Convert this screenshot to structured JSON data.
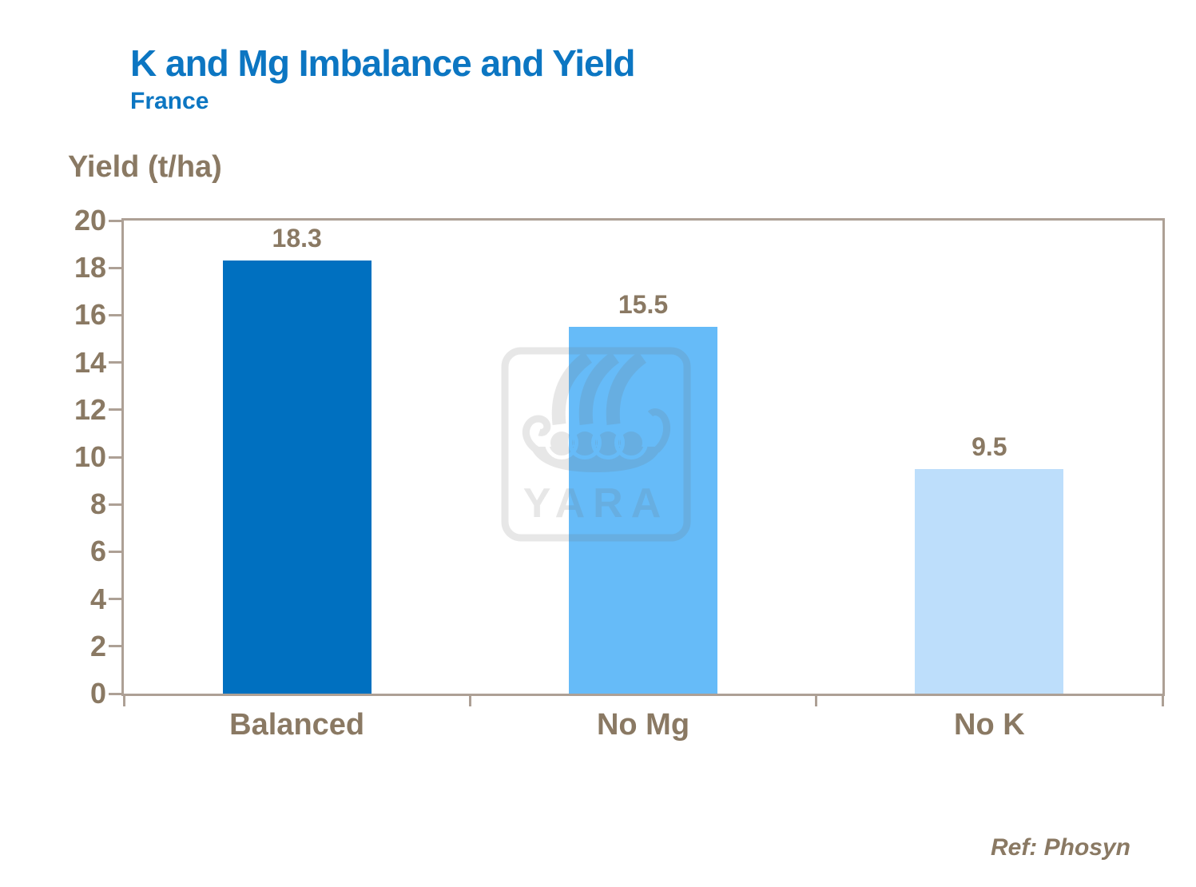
{
  "header": {
    "title": "K and Mg Imbalance and Yield",
    "subtitle": "France"
  },
  "axis_title": "Yield (t/ha)",
  "footer": {
    "ref": "Ref: Phosyn"
  },
  "watermark": {
    "name": "yara-ship-logo",
    "text": "YARA"
  },
  "colors": {
    "title_blue": "#0C76C2",
    "text_brown": "#8A7963",
    "frame_tan": "#ADA095",
    "watermark_gray": "#6E6E6E"
  },
  "chart_data": {
    "type": "bar",
    "title": "K and Mg Imbalance and Yield",
    "subtitle": "France",
    "categories": [
      "Balanced",
      "No Mg",
      "No K"
    ],
    "values": [
      18.3,
      15.5,
      9.5
    ],
    "value_labels": [
      "18.3",
      "15.5",
      "9.5"
    ],
    "bar_colors": [
      "#0070C0",
      "#66BBF8",
      "#BDDEFB"
    ],
    "ylabel": "Yield (t/ha)",
    "ylim": [
      0,
      20
    ],
    "ytick_step": 2,
    "grid": false,
    "legend": false,
    "annotation": "Ref: Phosyn"
  }
}
